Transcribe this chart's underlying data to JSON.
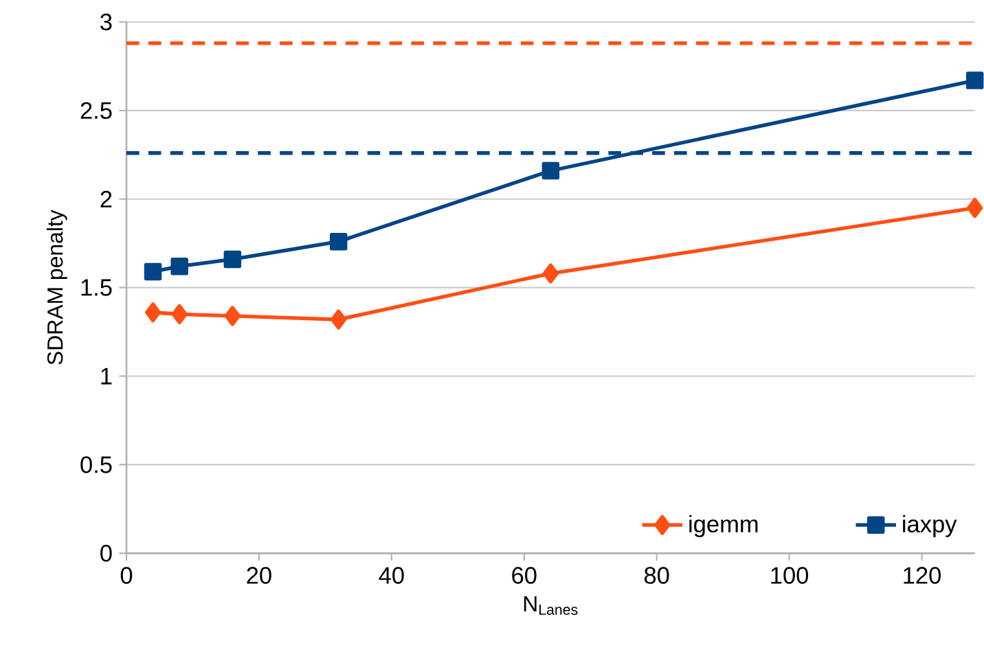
{
  "chart_data": {
    "type": "line",
    "xlabel": "N$_{Lanes}$",
    "ylabel": "SDRAM penalty",
    "series": [
      {
        "name": "igemm",
        "color": "#ff4f14",
        "marker": "diamond",
        "x": [
          4,
          8,
          16,
          32,
          64,
          128
        ],
        "values": [
          1.36,
          1.35,
          1.34,
          1.32,
          1.58,
          1.95
        ]
      },
      {
        "name": "iaxpy",
        "color": "#004586",
        "marker": "square",
        "x": [
          4,
          8,
          16,
          32,
          64,
          128
        ],
        "values": [
          1.59,
          1.62,
          1.66,
          1.76,
          2.16,
          2.67
        ]
      }
    ],
    "ref_lines": [
      {
        "axis": "y",
        "value": 2.88,
        "color": "#ff4f14",
        "line_style": "dashed"
      },
      {
        "axis": "y",
        "value": 2.26,
        "color": "#004586",
        "line_style": "dashed"
      }
    ],
    "xlim": [
      0,
      128
    ],
    "ylim": [
      0,
      3
    ],
    "xticks": [
      0,
      20,
      40,
      60,
      80,
      100,
      120
    ],
    "yticks": [
      0,
      0.5,
      1,
      1.5,
      2,
      2.5,
      3
    ],
    "grid": "y",
    "legend": "bottom right",
    "line_style": "solid"
  }
}
